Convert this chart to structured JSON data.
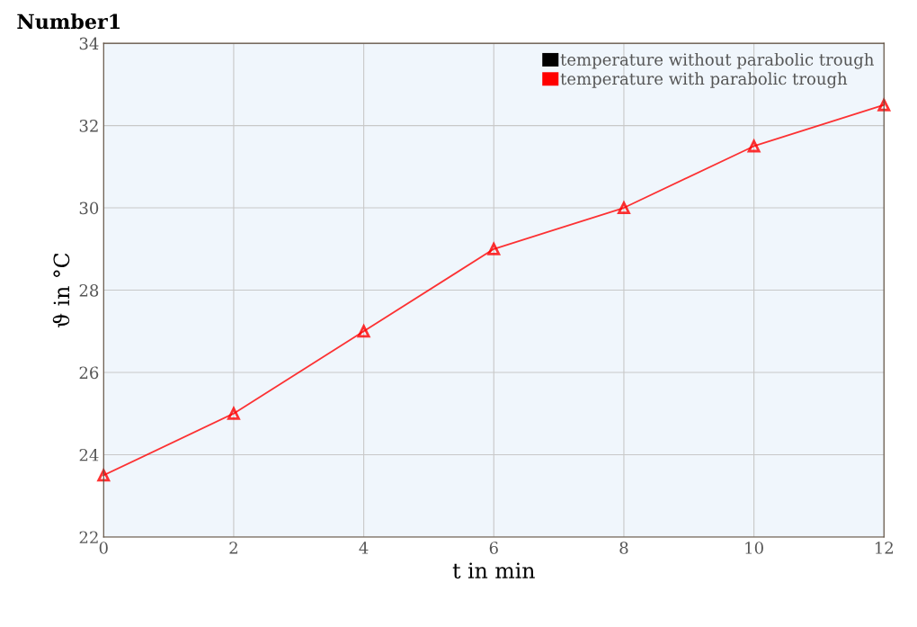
{
  "chart_data": {
    "type": "line",
    "title": "Number1",
    "xlabel": "t in min",
    "ylabel": "ϑ in °C",
    "x": [
      0,
      2,
      4,
      6,
      8,
      10,
      12
    ],
    "series": [
      {
        "name": "temperature without parabolic trough",
        "color": "#000000",
        "values": [
          null,
          null,
          null,
          null,
          null,
          null,
          null
        ]
      },
      {
        "name": "temperature with parabolic trough",
        "color": "#ff0000",
        "values": [
          23.5,
          25,
          27,
          29,
          30,
          31.5,
          32.5
        ]
      }
    ],
    "xlim": [
      0,
      12
    ],
    "xticks": [
      0,
      2,
      4,
      6,
      8,
      10,
      12
    ],
    "ylim": [
      22,
      34
    ],
    "yticks": [
      22,
      24,
      26,
      28,
      30,
      32,
      34
    ],
    "grid": true,
    "legend": "top right",
    "marker": "triangle",
    "line_style": "solid"
  }
}
